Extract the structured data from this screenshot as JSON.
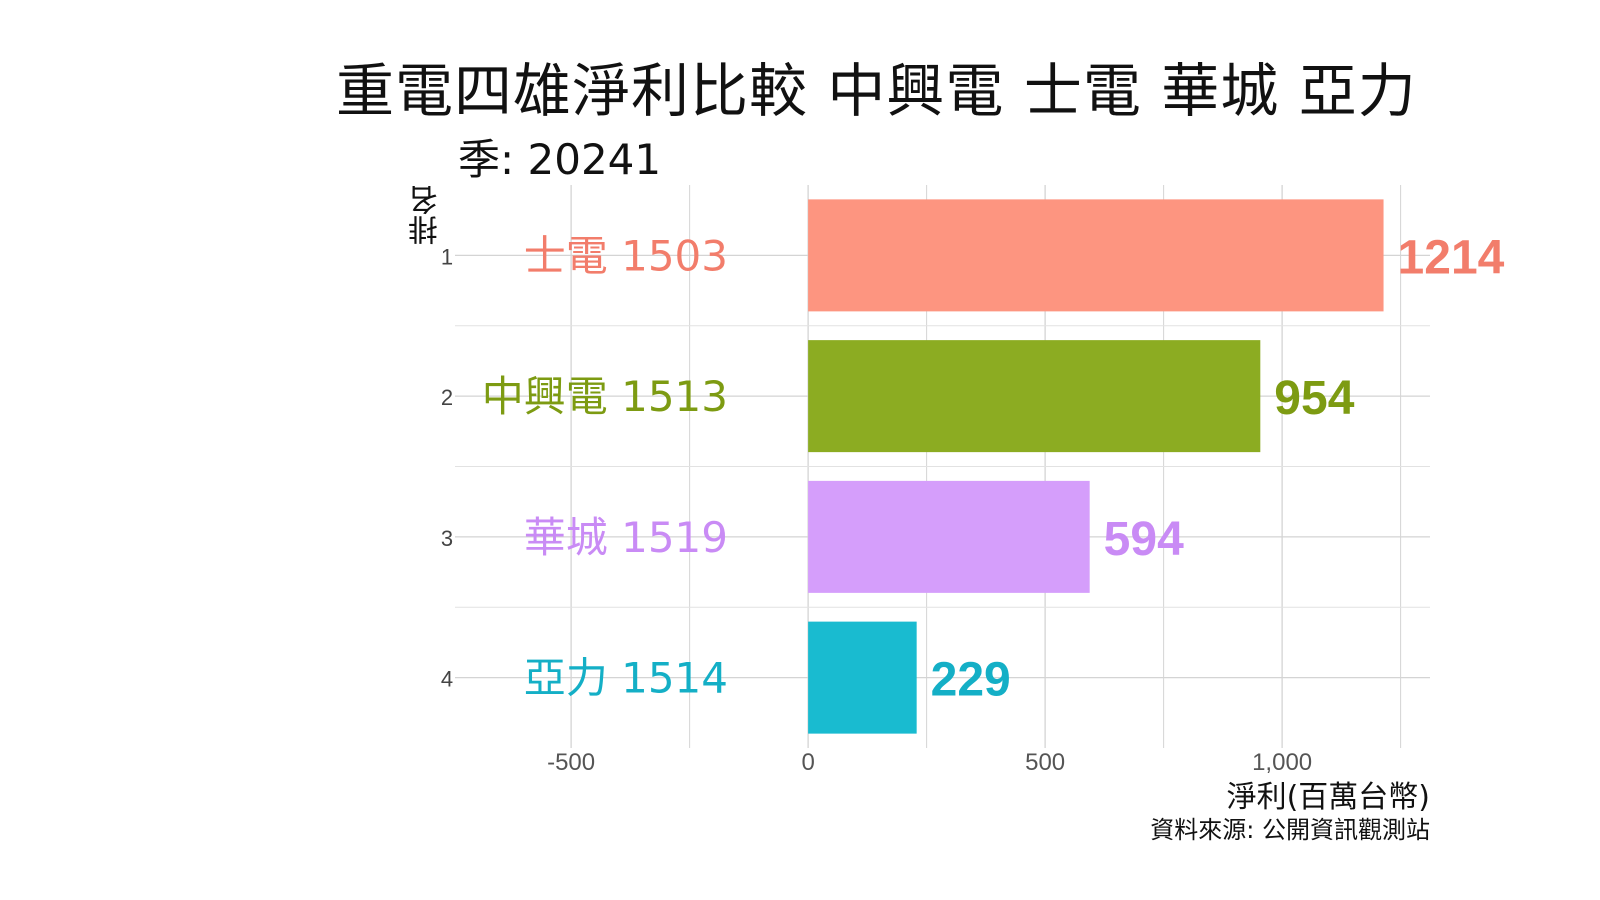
{
  "chart_data": {
    "type": "bar",
    "orientation": "horizontal",
    "title": "重電四雄淨利比較 中興電 士電 華城 亞力",
    "subtitle": "季: 20241",
    "xlabel": "淨利(百萬台幣)",
    "ylabel": "排名",
    "caption": "資料來源: 公開資訊觀測站",
    "xlim": [
      -745,
      1312
    ],
    "xticks": [
      -500,
      0,
      500,
      1000
    ],
    "xtick_labels": [
      "-500",
      "0",
      "500",
      "1,000"
    ],
    "grid": true,
    "legend": "none",
    "bars": [
      {
        "rank": "1",
        "label": "士電 1503",
        "value": 1214,
        "value_label": "1214",
        "color": "#FD9580",
        "text_color": "#F27D6B"
      },
      {
        "rank": "2",
        "label": "中興電 1513",
        "value": 954,
        "value_label": "954",
        "color": "#8CAC22",
        "text_color": "#7D9B12"
      },
      {
        "rank": "3",
        "label": "華城 1519",
        "value": 594,
        "value_label": "594",
        "color": "#D59EFB",
        "text_color": "#C98BF5"
      },
      {
        "rank": "4",
        "label": "亞力 1514",
        "value": 229,
        "value_label": "229",
        "color": "#19BBD0",
        "text_color": "#14AFC6"
      }
    ]
  }
}
